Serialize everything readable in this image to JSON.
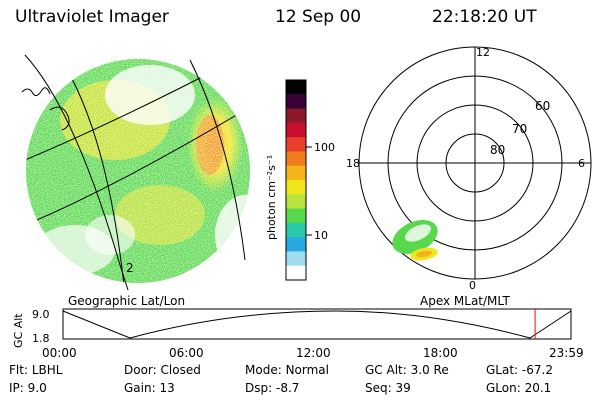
{
  "header": {
    "instrument": "Ultraviolet Imager",
    "date": "12 Sep 00",
    "time": "22:18:20 UT"
  },
  "colorbar": {
    "label": "photon cm⁻²s⁻¹",
    "ticks": [
      "100",
      "10"
    ],
    "colors": [
      "#000000",
      "#3a003a",
      "#8a1a2a",
      "#c8102e",
      "#e8402c",
      "#f07d1c",
      "#f5b41a",
      "#f0e61e",
      "#b8e23c",
      "#58d84c",
      "#28c8a8",
      "#28a8e0",
      "#a0dcf0",
      "#ffffff"
    ]
  },
  "left_panel": {
    "caption": "Geographic Lat/Lon",
    "annotations": [
      "2"
    ]
  },
  "polar_plot": {
    "caption": "Apex MLat/MLT",
    "mlt_labels": {
      "top": "12",
      "left": "18",
      "right": "6",
      "bottom": "0"
    },
    "lat_labels": [
      "60",
      "70",
      "80"
    ]
  },
  "altitude_strip": {
    "ylabel": "GC Alt",
    "yticks": [
      "9.0",
      "1.8"
    ],
    "xticks": [
      "00:00",
      "06:00",
      "12:00",
      "18:00",
      "23:59"
    ],
    "current_time_fraction": 0.9293,
    "marker_color": "#ff0000"
  },
  "info": {
    "row1": [
      {
        "key": "Flt:",
        "value": "LBHL"
      },
      {
        "key": "Door:",
        "value": "Closed"
      },
      {
        "key": "Mode:",
        "value": "Normal"
      },
      {
        "key": "GC Alt:",
        "value": "3.0 Re"
      },
      {
        "key": "GLat:",
        "value": "-67.2"
      }
    ],
    "row2": [
      {
        "key": "IP:",
        "value": "9.0"
      },
      {
        "key": "Gain:",
        "value": "13"
      },
      {
        "key": "Dsp:",
        "value": "-8.7"
      },
      {
        "key": "Seq:",
        "value": "39"
      },
      {
        "key": "GLon:",
        "value": "20.1"
      }
    ]
  }
}
